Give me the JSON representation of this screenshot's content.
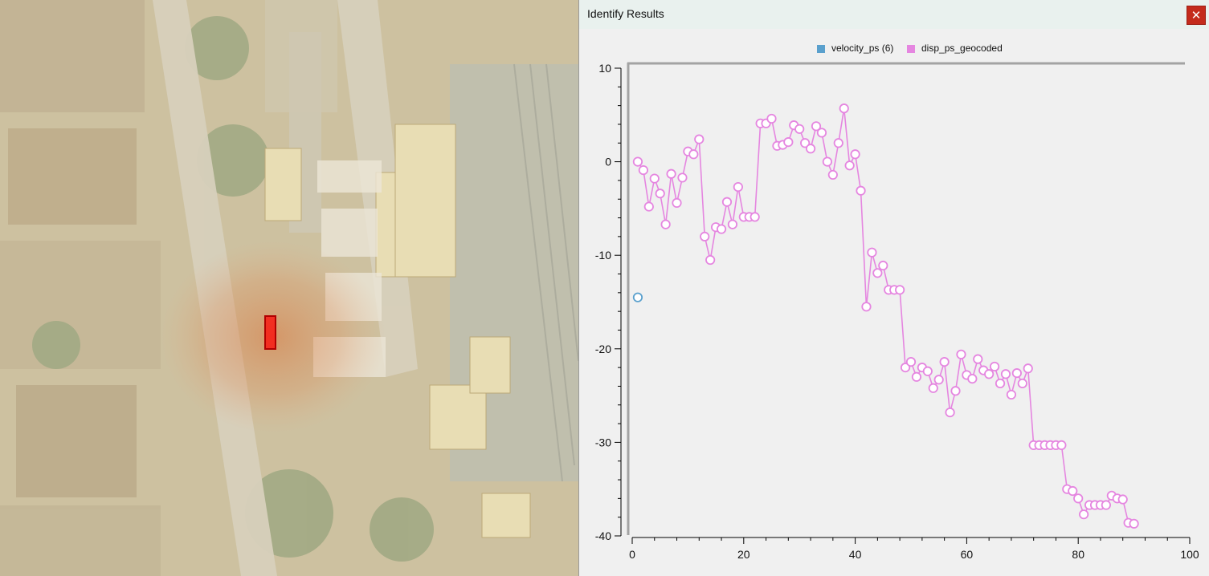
{
  "window": {
    "title": "Identify Results",
    "close_glyph": "✕"
  },
  "legend": [
    {
      "name": "velocity_ps (6)",
      "color": "#5aa0cd"
    },
    {
      "name": "disp_ps_geocoded",
      "color": "#e586e0"
    }
  ],
  "map": {
    "selection_color": "#ff0000",
    "hotspot_color": "#d97a3c"
  },
  "chart_data": {
    "type": "scatter",
    "title": "",
    "xlabel": "",
    "ylabel": "",
    "xlim": [
      0,
      100
    ],
    "ylim": [
      -40,
      10
    ],
    "x_ticks": [
      0,
      20,
      40,
      60,
      80,
      100
    ],
    "y_ticks": [
      10,
      0,
      -10,
      -20,
      -30,
      -40
    ],
    "grid": false,
    "legend_position": "top-center",
    "series": [
      {
        "name": "velocity_ps (6)",
        "color": "#5aa0cd",
        "marker": "circle",
        "line": false,
        "x": [
          1
        ],
        "y": [
          -14.5
        ]
      },
      {
        "name": "disp_ps_geocoded",
        "color": "#e586e0",
        "marker": "circle",
        "line": true,
        "x": [
          1,
          2,
          3,
          4,
          5,
          6,
          7,
          8,
          9,
          10,
          11,
          12,
          13,
          14,
          15,
          16,
          17,
          18,
          19,
          20,
          21,
          22,
          23,
          24,
          25,
          26,
          27,
          28,
          29,
          30,
          31,
          32,
          33,
          34,
          35,
          36,
          37,
          38,
          39,
          40,
          41,
          42,
          43,
          44,
          45,
          46,
          47,
          48,
          49,
          50,
          51,
          52,
          53,
          54,
          55,
          56,
          57,
          58,
          59,
          60,
          61,
          62,
          63,
          64,
          65,
          66,
          67,
          68,
          69,
          70,
          71,
          72,
          73,
          74,
          75,
          76,
          77,
          78,
          79,
          80,
          81,
          82,
          83,
          84,
          85,
          86,
          87,
          88,
          89,
          90
        ],
        "y": [
          0.0,
          -0.9,
          -4.8,
          -1.8,
          -3.4,
          -6.7,
          -1.3,
          -4.4,
          -1.7,
          1.1,
          0.8,
          2.4,
          -8.0,
          -10.5,
          -7.0,
          -7.2,
          -4.3,
          -6.7,
          -2.7,
          -5.9,
          -5.9,
          -5.9,
          4.1,
          4.1,
          4.6,
          1.7,
          1.8,
          2.1,
          3.9,
          3.5,
          2.0,
          1.4,
          3.8,
          3.1,
          0.0,
          -1.4,
          2.0,
          5.7,
          -0.4,
          0.8,
          -3.1,
          -15.5,
          -9.7,
          -11.9,
          -11.1,
          -13.7,
          -13.7,
          -13.7,
          -22.0,
          -21.4,
          -23.0,
          -22.0,
          -22.4,
          -24.2,
          -23.3,
          -21.4,
          -26.8,
          -24.5,
          -20.6,
          -22.8,
          -23.2,
          -21.1,
          -22.3,
          -22.7,
          -21.9,
          -23.7,
          -22.7,
          -24.9,
          -22.6,
          -23.7,
          -22.1,
          -30.3,
          -30.3,
          -30.3,
          -30.3,
          -30.3,
          -30.3,
          -35.0,
          -35.2,
          -36.0,
          -37.7,
          -36.7,
          -36.7,
          -36.7,
          -36.7,
          -35.7,
          -36.0,
          -36.1,
          -38.6,
          -38.7
        ]
      }
    ]
  }
}
